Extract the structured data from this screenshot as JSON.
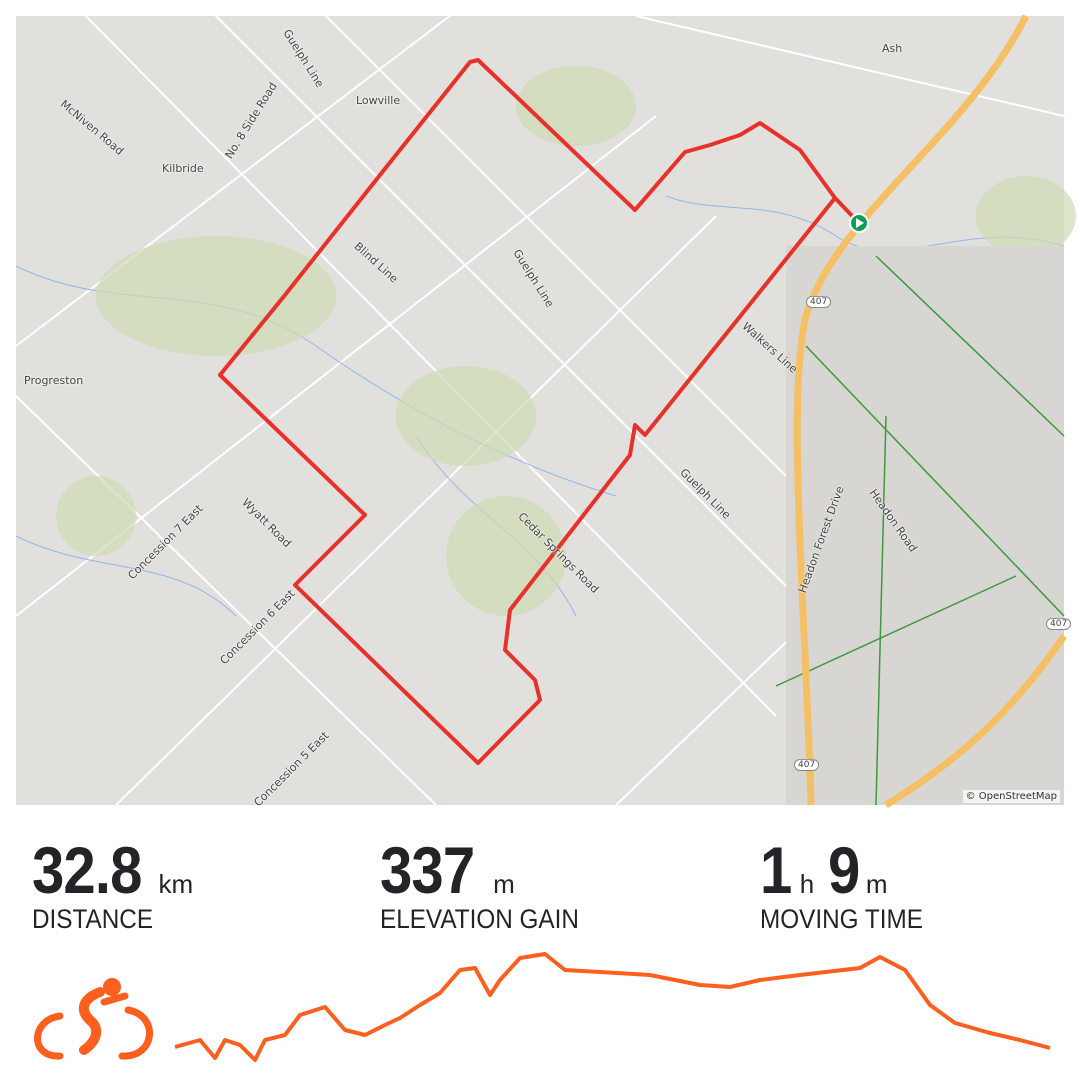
{
  "map": {
    "labels": [
      "Guelph Line",
      "Lowville",
      "Kilbride",
      "McNiven Road",
      "No. 8 Side Road",
      "Blind Line",
      "Guelph Line",
      "Progreston",
      "Walkers Line",
      "Guelph Line",
      "Cedar Springs Road",
      "Wyatt Road",
      "Concession 7 East",
      "Concession 6 East",
      "Concession 5 East",
      "Headon Forest Drive",
      "Headon Road",
      "Ash",
      "407",
      "407",
      "407"
    ],
    "attribution": "© OpenStreetMap",
    "route_color": "#e8312a",
    "start_marker_color": "#0f9d58"
  },
  "stats": [
    {
      "value": "32.8",
      "unit": "km",
      "label": "DISTANCE"
    },
    {
      "value": "337",
      "unit": "m",
      "label": "ELEVATION GAIN"
    },
    {
      "value_h": "1",
      "unit_h": "h",
      "value_m": "9",
      "unit_m": "m",
      "label": "MOVING TIME"
    }
  ],
  "activity": {
    "icon": "cycling-icon",
    "accent": "#fc5f1e"
  }
}
